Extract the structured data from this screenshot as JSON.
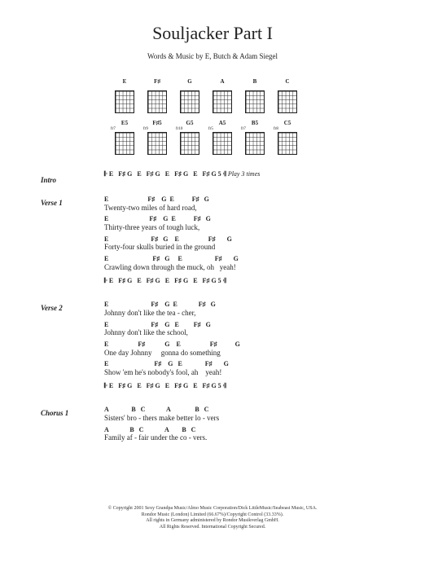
{
  "title": "Souljacker Part I",
  "byline": "Words & Music by E, Butch & Adam Siegel",
  "chord_diagrams_row1": [
    {
      "label": "E",
      "fret": ""
    },
    {
      "label": "F♯",
      "fret": ""
    },
    {
      "label": "G",
      "fret": ""
    },
    {
      "label": "A",
      "fret": ""
    },
    {
      "label": "B",
      "fret": ""
    },
    {
      "label": "C",
      "fret": ""
    }
  ],
  "chord_diagrams_row2": [
    {
      "label": "E5",
      "fret": "fr7"
    },
    {
      "label": "F♯5",
      "fret": "fr9"
    },
    {
      "label": "G5",
      "fret": "fr10"
    },
    {
      "label": "A5",
      "fret": "fr5"
    },
    {
      "label": "B5",
      "fret": "fr7"
    },
    {
      "label": "C5",
      "fret": "fr8"
    }
  ],
  "intro": {
    "label": "Intro",
    "riff": "𝄆 E   F♯ G   E   F♯ G   E   F♯ G   E   F♯ G 5 𝄇",
    "note": "Play 3 times"
  },
  "verse1": {
    "label": "Verse 1",
    "lines": [
      {
        "chords": "E                        F♯    G  E           F♯   G",
        "lyric": "Twenty-two miles of hard road,"
      },
      {
        "chords": "E                         F♯    G  E           F♯   G",
        "lyric": "Thirty-three years of tough luck,"
      },
      {
        "chords": "E                          F♯   G    E                  F♯       G",
        "lyric": "Forty-four skulls buried in the ground"
      },
      {
        "chords": "E                           F♯   G     E                    F♯       G",
        "lyric": "Crawling down through the muck, oh   yeah!"
      }
    ],
    "riff": "𝄆 E   F♯ G   E   F♯ G   E   F♯ G   E   F♯ G 5 𝄇"
  },
  "verse2": {
    "label": "Verse 2",
    "lines": [
      {
        "chords": "E                          F♯    G  E             F♯   G",
        "lyric": "Johnny don't like the tea - cher,"
      },
      {
        "chords": "E                          F♯    G   E         F♯   G",
        "lyric": "Johnny don't like the school,"
      },
      {
        "chords": "E                  F♯            G    E                  F♯           G",
        "lyric": "One day Johnny     gonna do something"
      },
      {
        "chords": "E                            F♯    G   E              F♯       G",
        "lyric": "Show 'em he's nobody's fool, ah    yeah!"
      }
    ],
    "riff": "𝄆 E   F♯ G   E   F♯ G   E   F♯ G   E   F♯ G 5 𝄇"
  },
  "chorus1": {
    "label": "Chorus 1",
    "lines": [
      {
        "chords": "A              B   C             A               B   C",
        "lyric": "Sisters' bro - thers make better lo - vers"
      },
      {
        "chords": "A             B   C             A        B   C",
        "lyric": "Family af - fair under the co - vers."
      }
    ]
  },
  "copyright": [
    "© Copyright 2001 Sexy Grandpa Music/Almo Music Corporation/Dick LittleMusic/Seabeast Music, USA.",
    "Rondor Music (London) Limited (66.67%)/Copyright Control (33.33%).",
    "All rights in Germany administered by Rondor Musikverlag GmbH.",
    "All Rights Reserved. International Copyright Secured."
  ]
}
